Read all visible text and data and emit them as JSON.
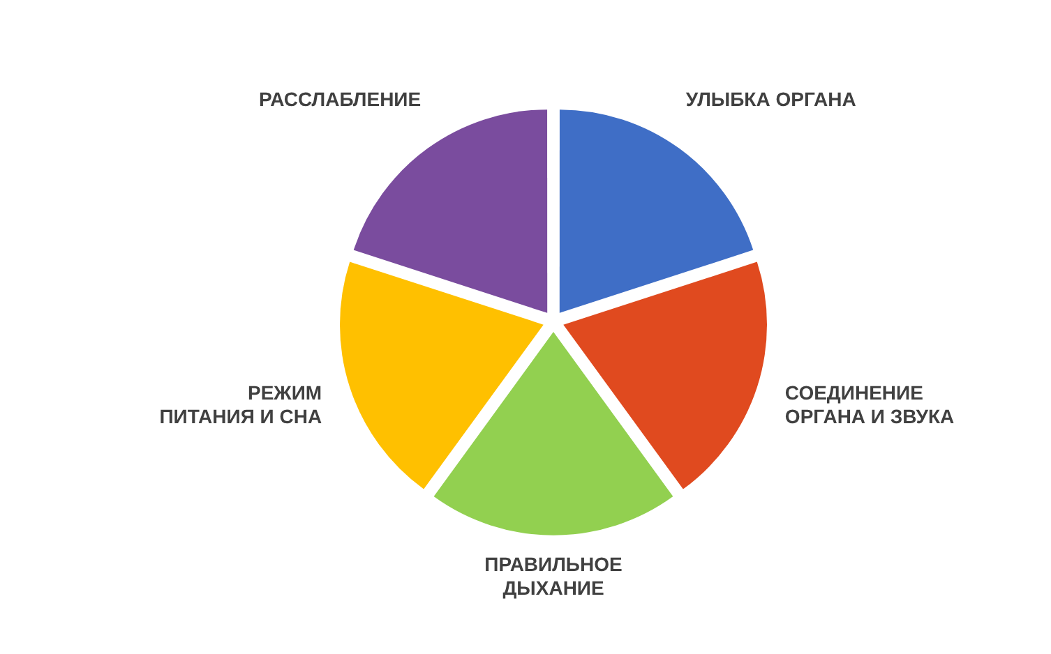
{
  "chart_data": {
    "type": "pie",
    "categories": [
      "УЛЫБКА ОРГАНА",
      "СОЕДИНЕНИЕ\nОРГАНА И ЗВУКА",
      "ПРАВИЛЬНОЕ\nДЫХАНИЕ",
      "РЕЖИМ\nПИТАНИЯ И СНА",
      "РАССЛАБЛЕНИЕ"
    ],
    "values": [
      20,
      20,
      20,
      20,
      20
    ],
    "colors": [
      "#3f6ec6",
      "#e04a1f",
      "#92d050",
      "#ffc000",
      "#7a4c9e"
    ],
    "legend": false
  }
}
